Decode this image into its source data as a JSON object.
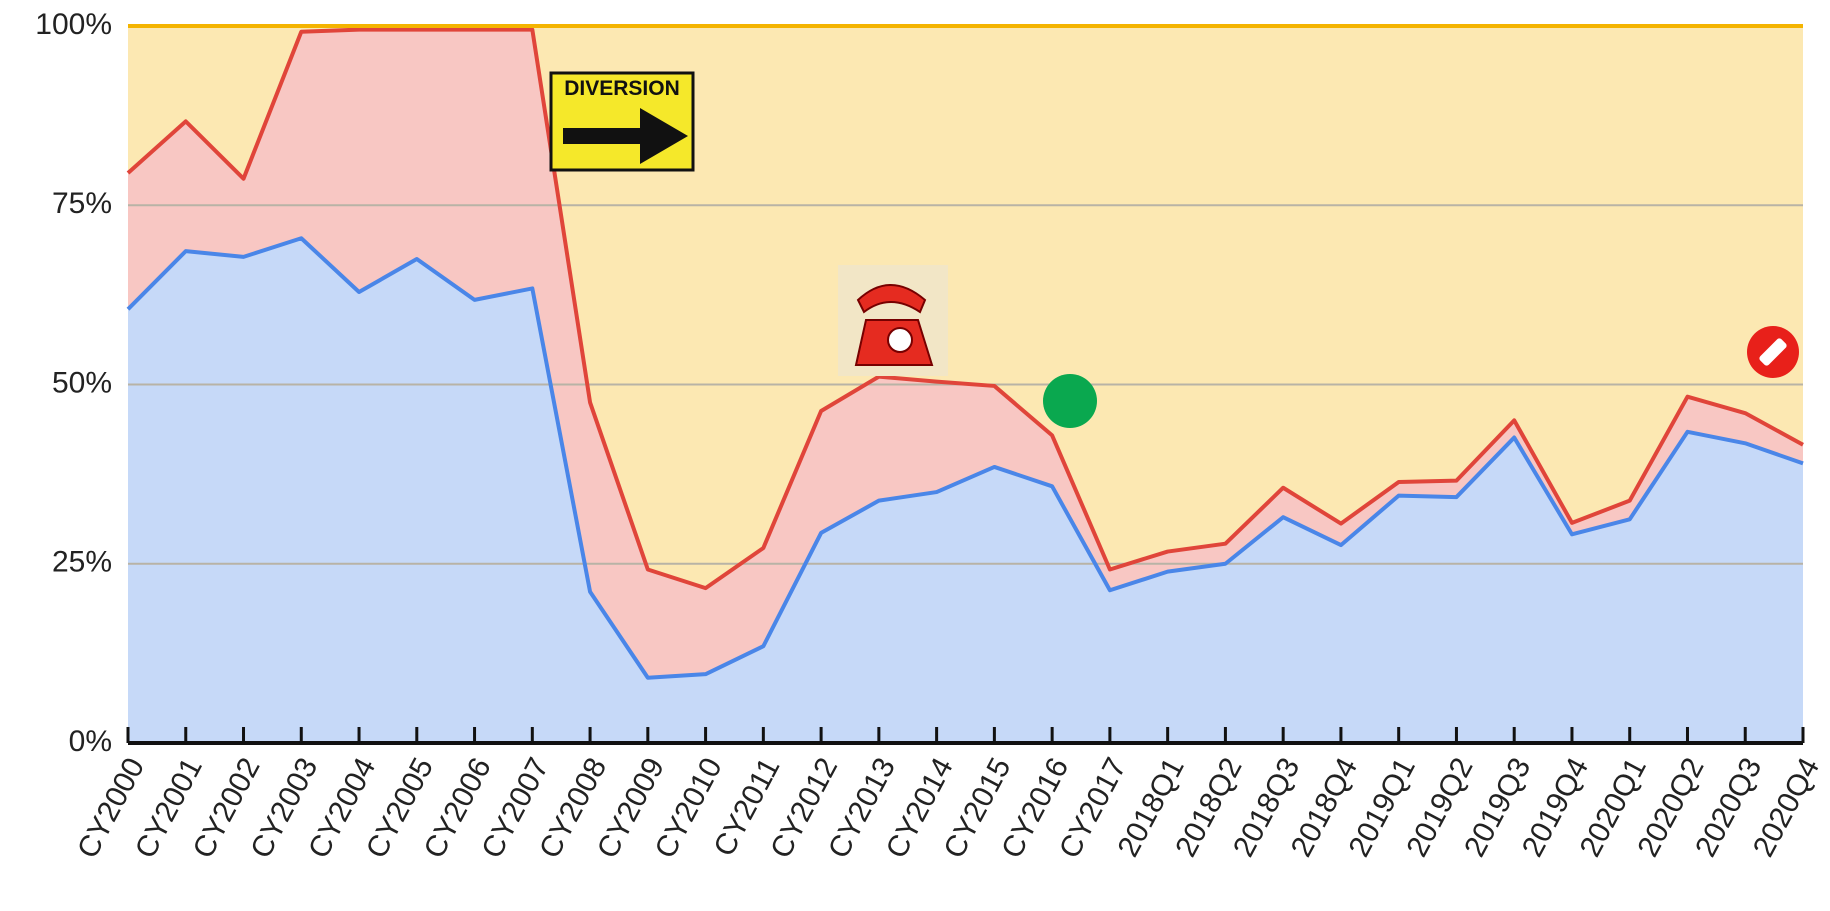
{
  "chart_data": {
    "type": "stacked_area",
    "categories": [
      "CY2000",
      "CY2001",
      "CY2002",
      "CY2003",
      "CY2004",
      "CY2005",
      "CY2006",
      "CY2007",
      "CY2008",
      "CY2009",
      "CY2010",
      "CY2011",
      "CY2012",
      "CY2013",
      "CY2014",
      "CY2015",
      "CY2016",
      "CY2017",
      "2018Q1",
      "2018Q2",
      "2018Q3",
      "2018Q4",
      "2019Q1",
      "2019Q2",
      "2019Q3",
      "2019Q4",
      "2020Q1",
      "2020Q2",
      "2020Q3",
      "2020Q4"
    ],
    "series": [
      {
        "color": "#4a86e8",
        "fill": "#c6d9f8",
        "values": [
          60.5,
          68.6,
          67.8,
          70.4,
          62.9,
          67.5,
          61.8,
          63.4,
          21.1,
          9.1,
          9.6,
          13.5,
          29.3,
          33.8,
          35,
          38.5,
          35.8,
          21.3,
          23.9,
          25,
          31.5,
          27.6,
          34.5,
          34.3,
          42.6,
          29.1,
          31.2,
          43.4,
          41.8,
          39
        ]
      },
      {
        "color": "#e0453a",
        "fill": "#f8c7c3",
        "values": [
          19,
          18.1,
          10.9,
          28.8,
          36.6,
          32,
          37.7,
          36.1,
          26.4,
          15.1,
          12,
          13.7,
          17,
          17.3,
          15.4,
          11.3,
          7.1,
          2.9,
          2.8,
          2.8,
          4.1,
          3,
          1.9,
          2.3,
          2.4,
          1.6,
          2.6,
          4.9,
          4.2,
          2.6
        ]
      },
      {
        "color": "#f4b400",
        "fill": "#fce8b2",
        "values": [
          20.5,
          13.3,
          21.3,
          0.8,
          0.5,
          0.5,
          0.5,
          0.5,
          52.5,
          75.8,
          78.4,
          72.8,
          53.7,
          48.9,
          49.6,
          50.2,
          57.1,
          75.8,
          73.3,
          72.2,
          64.4,
          69.4,
          63.6,
          63.4,
          55,
          69.3,
          66.2,
          51.7,
          54,
          58.4
        ]
      }
    ],
    "ylim": [
      0,
      100
    ],
    "yticks": [
      {
        "value": 0,
        "label": "0%"
      },
      {
        "value": 25,
        "label": "25%"
      },
      {
        "value": 50,
        "label": "50%"
      },
      {
        "value": 75,
        "label": "75%"
      },
      {
        "value": 100,
        "label": "100%"
      }
    ],
    "grid": true,
    "annotation": "DIVERSION"
  }
}
